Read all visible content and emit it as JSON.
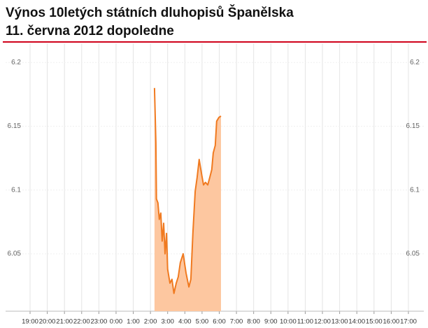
{
  "chart_data": {
    "type": "area",
    "title": "Výnos 10letých státních dluhopisů Španělska",
    "subtitle": "11. června 2012 dopoledne",
    "x": [
      "2:14",
      "2:19",
      "2:21",
      "2:26",
      "2:31",
      "2:36",
      "2:41",
      "2:46",
      "2:51",
      "2:56",
      "3:00",
      "3:08",
      "3:15",
      "3:22",
      "3:30",
      "3:37",
      "3:44",
      "3:54",
      "4:04",
      "4:14",
      "4:21",
      "4:28",
      "4:36",
      "4:43",
      "4:50",
      "4:58",
      "5:05",
      "5:12",
      "5:20",
      "5:27",
      "5:34",
      "5:39",
      "5:46",
      "5:51",
      "5:59",
      "6:06"
    ],
    "values": [
      6.18,
      6.137,
      6.093,
      6.09,
      6.077,
      6.082,
      6.06,
      6.074,
      6.05,
      6.066,
      6.038,
      6.027,
      6.03,
      6.019,
      6.027,
      6.032,
      6.043,
      6.05,
      6.035,
      6.024,
      6.03,
      6.066,
      6.099,
      6.11,
      6.124,
      6.113,
      6.104,
      6.106,
      6.104,
      6.11,
      6.116,
      6.129,
      6.135,
      6.154,
      6.157,
      6.158
    ],
    "color": "#f07a20",
    "fill": "#fdc7a0",
    "xlim": [
      "19:00",
      "17:00"
    ],
    "xticks": [
      "19:00",
      "20:00",
      "21:00",
      "22:00",
      "23:00",
      "0:00",
      "1:00",
      "2:00",
      "3:00",
      "4:00",
      "5:00",
      "6:00",
      "7:00",
      "8:00",
      "9:00",
      "10:00",
      "11:00",
      "12:00",
      "13:00",
      "14:00",
      "15:00",
      "16:00",
      "17:00"
    ],
    "ylim": [
      6.005,
      6.215
    ],
    "yticks": [
      6.05,
      6.1,
      6.15,
      6.2
    ],
    "grid": true
  }
}
